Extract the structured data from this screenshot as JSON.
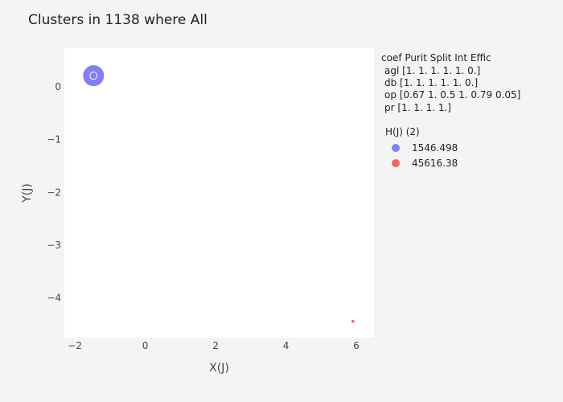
{
  "chart_data": {
    "type": "scatter",
    "title": "Clusters in 1138 where All",
    "xlabel": "X(J)",
    "ylabel": "Y(J)",
    "xlim": [
      -2.3,
      6.5
    ],
    "ylim": [
      -4.75,
      0.73
    ],
    "xticks": [
      -2,
      0,
      2,
      4,
      6
    ],
    "yticks": [
      0,
      -1,
      -2,
      -3,
      -4
    ],
    "xtick_labels": [
      "−2",
      "0",
      "2",
      "4",
      "6"
    ],
    "ytick_labels": [
      "0",
      "−1",
      "−2",
      "−3",
      "−4"
    ],
    "grid": false,
    "legend_position": "right",
    "annotation": {
      "header": "coef Purit Split Int Effic",
      "lines": [
        "agl [1. 1. 1. 1. 1. 0.]",
        "db [1. 1. 1. 1. 1. 0.]",
        "op [0.67 1.   0.5  1.   0.79 0.05]",
        "pr [1. 1. 1. 1.]"
      ]
    },
    "legend_title": "H(J) (2)",
    "series": [
      {
        "name": "1546.498",
        "color": "#7f7ff7",
        "points": [
          {
            "x": -1.47,
            "y": 0.21
          }
        ]
      },
      {
        "name": "45616.38",
        "color": "#ef6a55",
        "points": [
          {
            "x": 5.9,
            "y": -4.44
          }
        ]
      }
    ]
  }
}
